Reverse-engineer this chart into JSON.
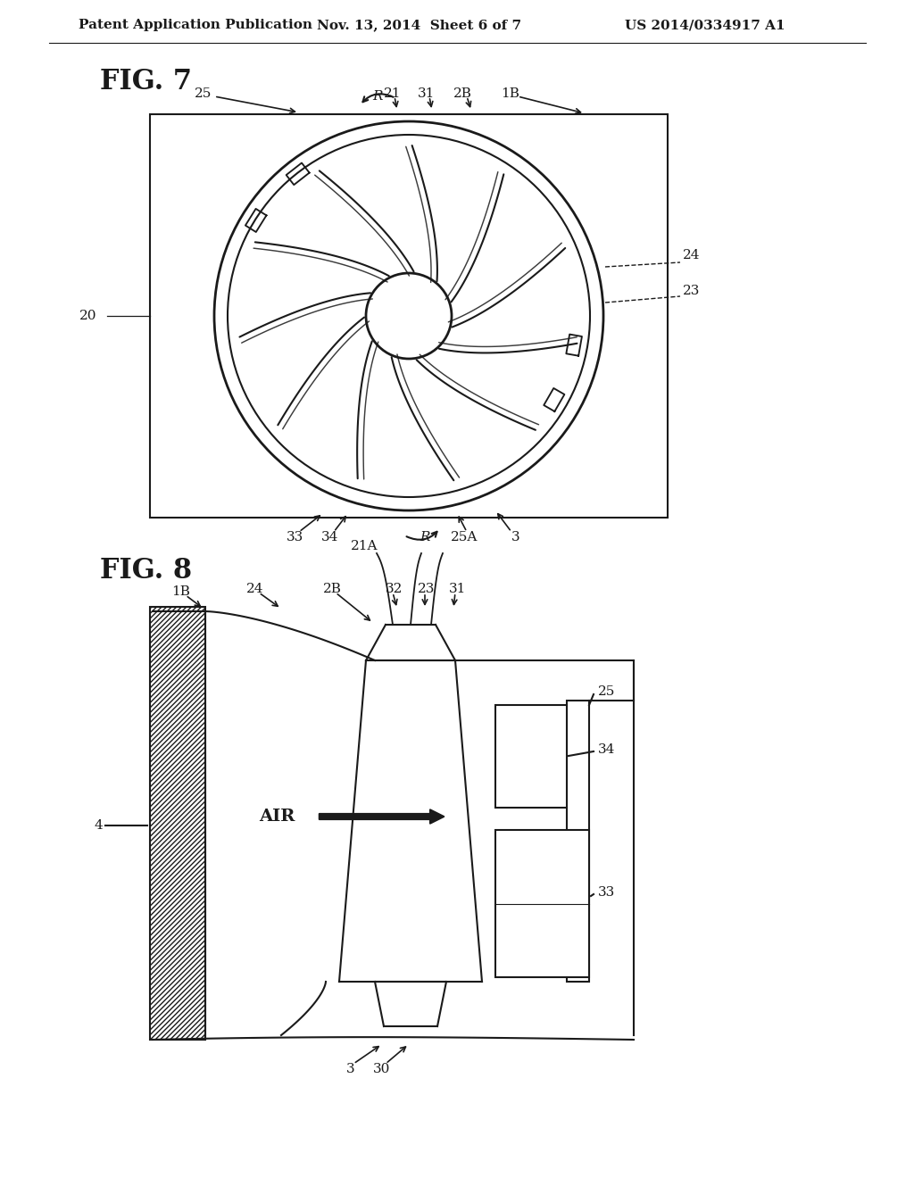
{
  "bg_color": "#ffffff",
  "line_color": "#1a1a1a",
  "header_left": "Patent Application Publication",
  "header_center": "Nov. 13, 2014  Sheet 6 of 7",
  "header_right": "US 2014/0334917 A1",
  "fig7_label": "FIG. 7",
  "fig8_label": "FIG. 8"
}
